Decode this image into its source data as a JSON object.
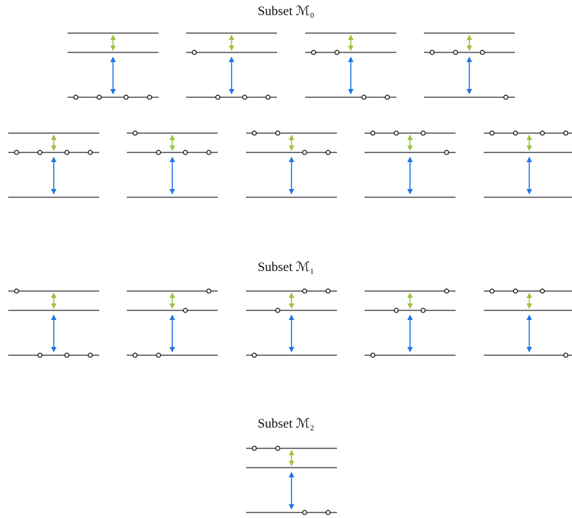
{
  "sections": [
    {
      "title": "Subset ℳ₀"
    },
    {
      "title": "Subset ℳ₁"
    },
    {
      "title": "Subset ℳ₂"
    }
  ]
}
